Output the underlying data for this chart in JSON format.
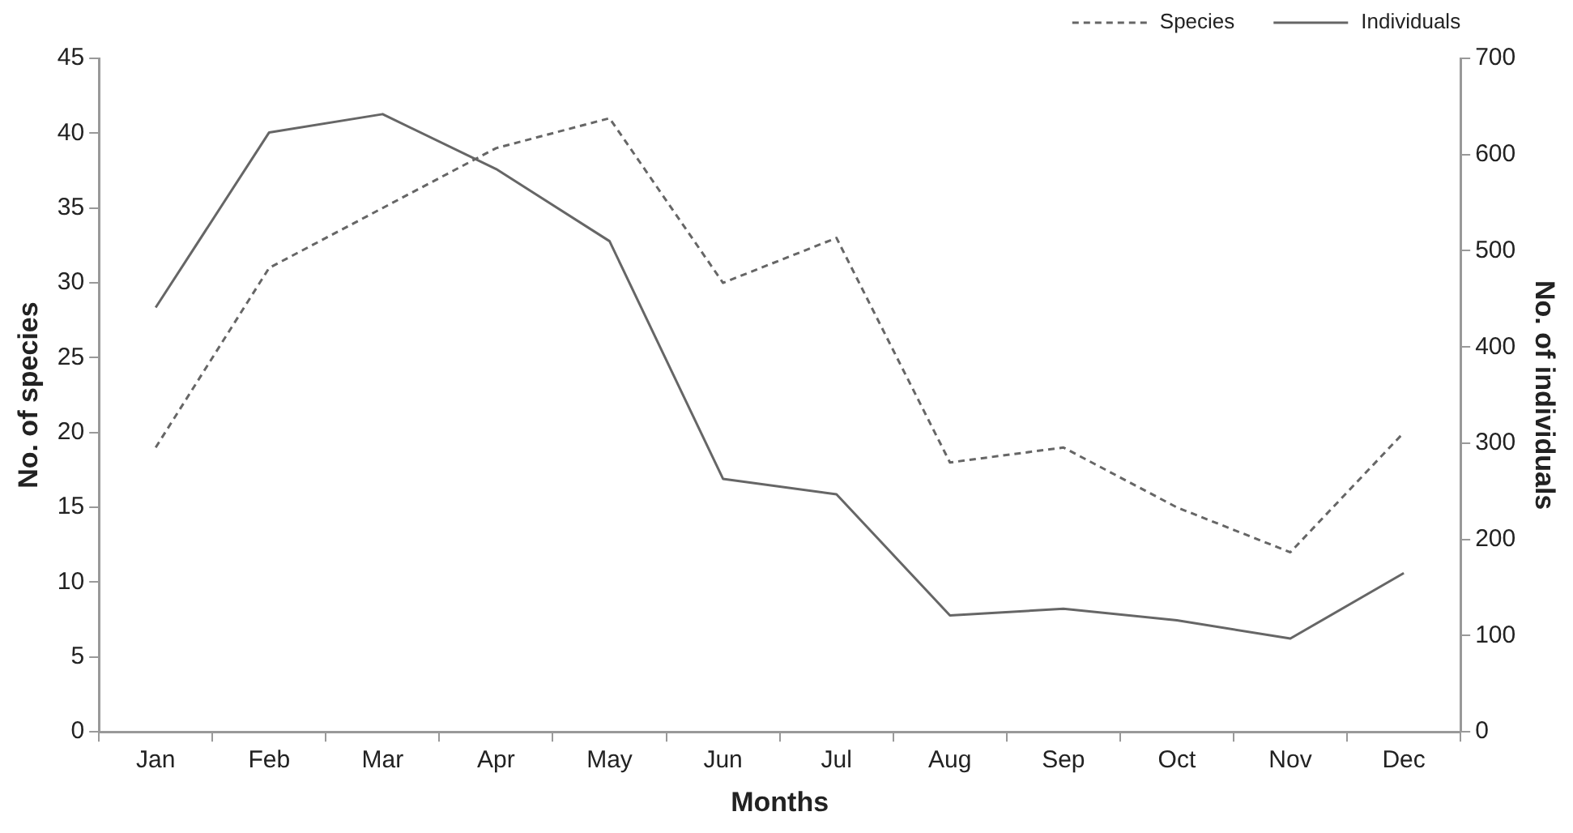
{
  "chart_data": {
    "type": "line",
    "xlabel": "Months",
    "ylabel": "No. of species",
    "y2label": "No. of individuals",
    "categories": [
      "Jan",
      "Feb",
      "Mar",
      "Apr",
      "May",
      "Jun",
      "Jul",
      "Aug",
      "Sep",
      "Oct",
      "Nov",
      "Dec"
    ],
    "series": [
      {
        "name": "Species",
        "color": "#666666",
        "line_style": "dashed",
        "values": [
          19,
          31,
          35,
          39,
          41,
          30,
          33,
          18,
          19,
          15,
          12,
          20
        ]
      },
      {
        "name": "Individuals",
        "color": "#666666",
        "line_style": "solid",
        "axis": "y2",
        "values": [
          441,
          623,
          642,
          585,
          510,
          263,
          247,
          121,
          128,
          116,
          97,
          165
        ]
      }
    ],
    "ylim": [
      0,
      45
    ],
    "yticks": [
      0,
      5,
      10,
      15,
      20,
      25,
      30,
      35,
      40,
      45
    ],
    "y2lim": [
      0,
      700
    ],
    "y2ticks": [
      0,
      100,
      200,
      300,
      400,
      500,
      600,
      700
    ],
    "grid": false,
    "legend": "top right",
    "marker": "none"
  }
}
